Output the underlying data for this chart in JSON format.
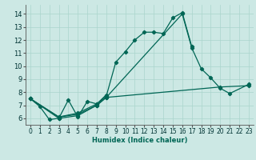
{
  "title": "",
  "xlabel": "Humidex (Indice chaleur)",
  "background_color": "#cce8e4",
  "grid_color": "#aad4cc",
  "line_color": "#006655",
  "xlim": [
    -0.5,
    23.5
  ],
  "ylim": [
    5.5,
    14.7
  ],
  "xticks": [
    0,
    1,
    2,
    3,
    4,
    5,
    6,
    7,
    8,
    9,
    10,
    11,
    12,
    13,
    14,
    15,
    16,
    17,
    18,
    19,
    20,
    21,
    22,
    23
  ],
  "yticks": [
    6,
    7,
    8,
    9,
    10,
    11,
    12,
    13,
    14
  ],
  "series": [
    {
      "x": [
        0,
        1,
        2,
        3,
        4,
        5,
        6,
        7,
        8,
        9,
        10,
        11,
        12,
        13,
        14,
        15,
        16,
        17
      ],
      "y": [
        7.5,
        6.9,
        5.9,
        6.0,
        7.4,
        6.1,
        7.3,
        7.1,
        7.7,
        10.3,
        11.1,
        12.0,
        12.6,
        12.6,
        12.5,
        13.7,
        14.1,
        11.5
      ]
    },
    {
      "x": [
        0,
        3,
        5,
        7,
        8,
        16,
        17,
        18,
        19,
        20,
        21,
        23
      ],
      "y": [
        7.5,
        6.0,
        6.2,
        7.0,
        7.6,
        14.0,
        11.4,
        9.8,
        9.1,
        8.3,
        7.9,
        8.6
      ]
    },
    {
      "x": [
        0,
        3,
        5,
        7,
        8,
        20,
        23
      ],
      "y": [
        7.5,
        6.1,
        6.3,
        7.0,
        7.6,
        8.4,
        8.5
      ]
    },
    {
      "x": [
        0,
        3,
        5,
        7,
        8
      ],
      "y": [
        7.5,
        6.1,
        6.4,
        7.1,
        7.8
      ]
    }
  ],
  "xlabel_fontsize": 6,
  "tick_fontsize": 5.5,
  "linewidth": 0.9,
  "markersize": 2.2
}
